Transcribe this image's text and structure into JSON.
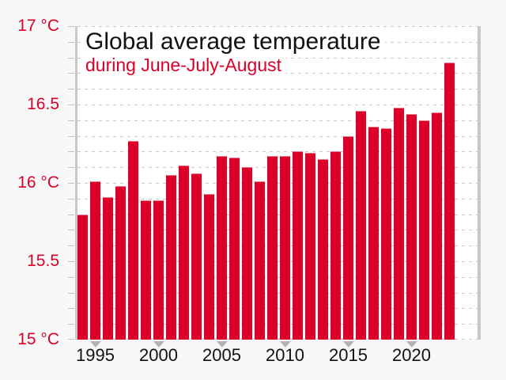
{
  "chart_data": {
    "type": "bar",
    "title": "Global average temperature",
    "subtitle": "during June-July-August",
    "unit": "°C",
    "ylim": [
      15,
      17
    ],
    "grid_step": 0.1,
    "grid": "horizontal-dashed",
    "legend_position": "none",
    "categories": [
      1994,
      1995,
      1996,
      1997,
      1998,
      1999,
      2000,
      2001,
      2002,
      2003,
      2004,
      2005,
      2006,
      2007,
      2008,
      2009,
      2010,
      2011,
      2012,
      2013,
      2014,
      2015,
      2016,
      2017,
      2018,
      2019,
      2020,
      2021,
      2022,
      2023
    ],
    "values": [
      15.8,
      16.01,
      15.91,
      15.98,
      16.27,
      15.89,
      15.89,
      16.05,
      16.11,
      16.06,
      15.93,
      16.17,
      16.16,
      16.1,
      16.01,
      16.17,
      16.17,
      16.2,
      16.19,
      16.15,
      16.2,
      16.3,
      16.46,
      16.36,
      16.35,
      16.48,
      16.44,
      16.4,
      16.45,
      16.77
    ],
    "yticks": [
      {
        "label": "17 °C",
        "value": 17
      },
      {
        "label": "16.5",
        "value": 16.5
      },
      {
        "label": "16 °C",
        "value": 16
      },
      {
        "label": "15.5",
        "value": 15.5
      },
      {
        "label": "15 °C",
        "value": 15
      }
    ],
    "xticks": [
      {
        "label": "1995",
        "year": 1995
      },
      {
        "label": "2000",
        "year": 2000
      },
      {
        "label": "2005",
        "year": 2005
      },
      {
        "label": "2010",
        "year": 2010
      },
      {
        "label": "2015",
        "year": 2015
      },
      {
        "label": "2020",
        "year": 2020
      }
    ],
    "colors": {
      "bar": "#dc0028",
      "accent_text": "#dc0028",
      "title_text": "#111111",
      "axis_text": "#111111",
      "gridline": "#c9c9c9",
      "plot_border": "#c9c9c9",
      "tick_marker": "#b3b3b3",
      "plot_bg": "#ffffff",
      "page_bg": "#f7f7f7"
    }
  }
}
